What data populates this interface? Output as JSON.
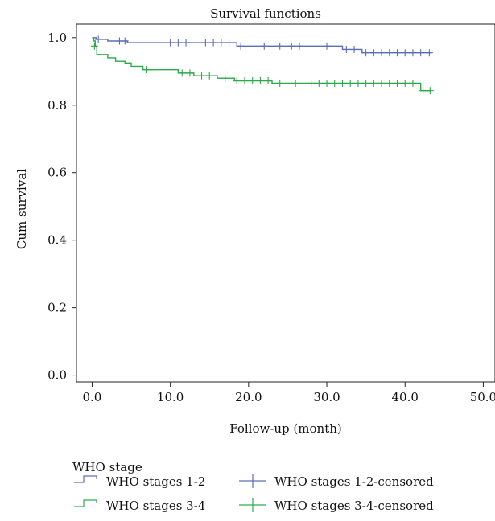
{
  "chart_data": {
    "type": "line",
    "title": "Survival functions",
    "xlabel": "Follow-up (month)",
    "ylabel": "Cum survival",
    "xlim": [
      -2,
      51.5
    ],
    "ylim": [
      -0.02,
      1.04
    ],
    "x_ticks": [
      0,
      10,
      20,
      30,
      40,
      50
    ],
    "x_tick_labels": [
      "0.0",
      "10.0",
      "20.0",
      "30.0",
      "40.0",
      "50.0"
    ],
    "y_ticks": [
      0,
      0.2,
      0.4,
      0.6,
      0.8,
      1.0
    ],
    "y_tick_labels": [
      "0.0",
      "0.2",
      "0.4",
      "0.6",
      "0.8",
      "1.0"
    ],
    "grid": false,
    "legend": {
      "title": "WHO stage",
      "position": "bottom",
      "entries": [
        {
          "label": "WHO stages 1-2",
          "series": "WHO stages 1-2",
          "kind": "step"
        },
        {
          "label": "WHO stages 1-2-censored",
          "series": "WHO stages 1-2",
          "kind": "censor"
        },
        {
          "label": "WHO stages 3-4",
          "series": "WHO stages 3-4",
          "kind": "step"
        },
        {
          "label": "WHO stages 3-4-censored",
          "series": "WHO stages 3-4",
          "kind": "censor"
        }
      ]
    },
    "series": [
      {
        "name": "WHO stages 1-2",
        "color": "#5B6FB5",
        "steps": [
          {
            "x": 0,
            "y": 1.0
          },
          {
            "x": 0.5,
            "y": 0.995
          },
          {
            "x": 2,
            "y": 0.99
          },
          {
            "x": 4.5,
            "y": 0.985
          },
          {
            "x": 18.5,
            "y": 0.975
          },
          {
            "x": 32,
            "y": 0.965
          },
          {
            "x": 34.5,
            "y": 0.955
          },
          {
            "x": 43.3,
            "y": 0.955
          }
        ],
        "censored": [
          {
            "x": 0.8,
            "y": 0.995
          },
          {
            "x": 3.5,
            "y": 0.99
          },
          {
            "x": 4.2,
            "y": 0.99
          },
          {
            "x": 10,
            "y": 0.985
          },
          {
            "x": 11,
            "y": 0.985
          },
          {
            "x": 12,
            "y": 0.985
          },
          {
            "x": 14.5,
            "y": 0.985
          },
          {
            "x": 15.5,
            "y": 0.985
          },
          {
            "x": 16.5,
            "y": 0.985
          },
          {
            "x": 17.5,
            "y": 0.985
          },
          {
            "x": 19,
            "y": 0.975
          },
          {
            "x": 22,
            "y": 0.975
          },
          {
            "x": 24,
            "y": 0.975
          },
          {
            "x": 25.5,
            "y": 0.975
          },
          {
            "x": 26.5,
            "y": 0.975
          },
          {
            "x": 30,
            "y": 0.975
          },
          {
            "x": 32.5,
            "y": 0.965
          },
          {
            "x": 33.5,
            "y": 0.965
          },
          {
            "x": 35,
            "y": 0.955
          },
          {
            "x": 36,
            "y": 0.955
          },
          {
            "x": 37,
            "y": 0.955
          },
          {
            "x": 38,
            "y": 0.955
          },
          {
            "x": 39,
            "y": 0.955
          },
          {
            "x": 40,
            "y": 0.955
          },
          {
            "x": 41,
            "y": 0.955
          },
          {
            "x": 42,
            "y": 0.955
          },
          {
            "x": 43.1,
            "y": 0.955
          }
        ]
      },
      {
        "name": "WHO stages 3-4",
        "color": "#2DAA4A",
        "steps": [
          {
            "x": 0,
            "y": 1.0
          },
          {
            "x": 0.2,
            "y": 0.99
          },
          {
            "x": 0.4,
            "y": 0.975
          },
          {
            "x": 0.6,
            "y": 0.95
          },
          {
            "x": 2,
            "y": 0.94
          },
          {
            "x": 3,
            "y": 0.93
          },
          {
            "x": 4.2,
            "y": 0.925
          },
          {
            "x": 5,
            "y": 0.915
          },
          {
            "x": 6.5,
            "y": 0.905
          },
          {
            "x": 11,
            "y": 0.895
          },
          {
            "x": 13,
            "y": 0.887
          },
          {
            "x": 16,
            "y": 0.88
          },
          {
            "x": 18.2,
            "y": 0.872
          },
          {
            "x": 23,
            "y": 0.865
          },
          {
            "x": 42,
            "y": 0.843
          },
          {
            "x": 43.3,
            "y": 0.843
          }
        ],
        "censored": [
          {
            "x": 0.3,
            "y": 0.975
          },
          {
            "x": 7,
            "y": 0.905
          },
          {
            "x": 11.5,
            "y": 0.895
          },
          {
            "x": 12.5,
            "y": 0.895
          },
          {
            "x": 14,
            "y": 0.887
          },
          {
            "x": 15,
            "y": 0.887
          },
          {
            "x": 17,
            "y": 0.88
          },
          {
            "x": 18.5,
            "y": 0.872
          },
          {
            "x": 19.5,
            "y": 0.872
          },
          {
            "x": 20.5,
            "y": 0.872
          },
          {
            "x": 21.5,
            "y": 0.872
          },
          {
            "x": 22.5,
            "y": 0.872
          },
          {
            "x": 24,
            "y": 0.865
          },
          {
            "x": 26,
            "y": 0.865
          },
          {
            "x": 28,
            "y": 0.865
          },
          {
            "x": 29,
            "y": 0.865
          },
          {
            "x": 30,
            "y": 0.865
          },
          {
            "x": 31,
            "y": 0.865
          },
          {
            "x": 32,
            "y": 0.865
          },
          {
            "x": 33,
            "y": 0.865
          },
          {
            "x": 34,
            "y": 0.865
          },
          {
            "x": 35,
            "y": 0.865
          },
          {
            "x": 36,
            "y": 0.865
          },
          {
            "x": 37,
            "y": 0.865
          },
          {
            "x": 38,
            "y": 0.865
          },
          {
            "x": 39,
            "y": 0.865
          },
          {
            "x": 40,
            "y": 0.865
          },
          {
            "x": 41,
            "y": 0.865
          },
          {
            "x": 42.3,
            "y": 0.843
          },
          {
            "x": 43.2,
            "y": 0.843
          }
        ]
      }
    ]
  }
}
